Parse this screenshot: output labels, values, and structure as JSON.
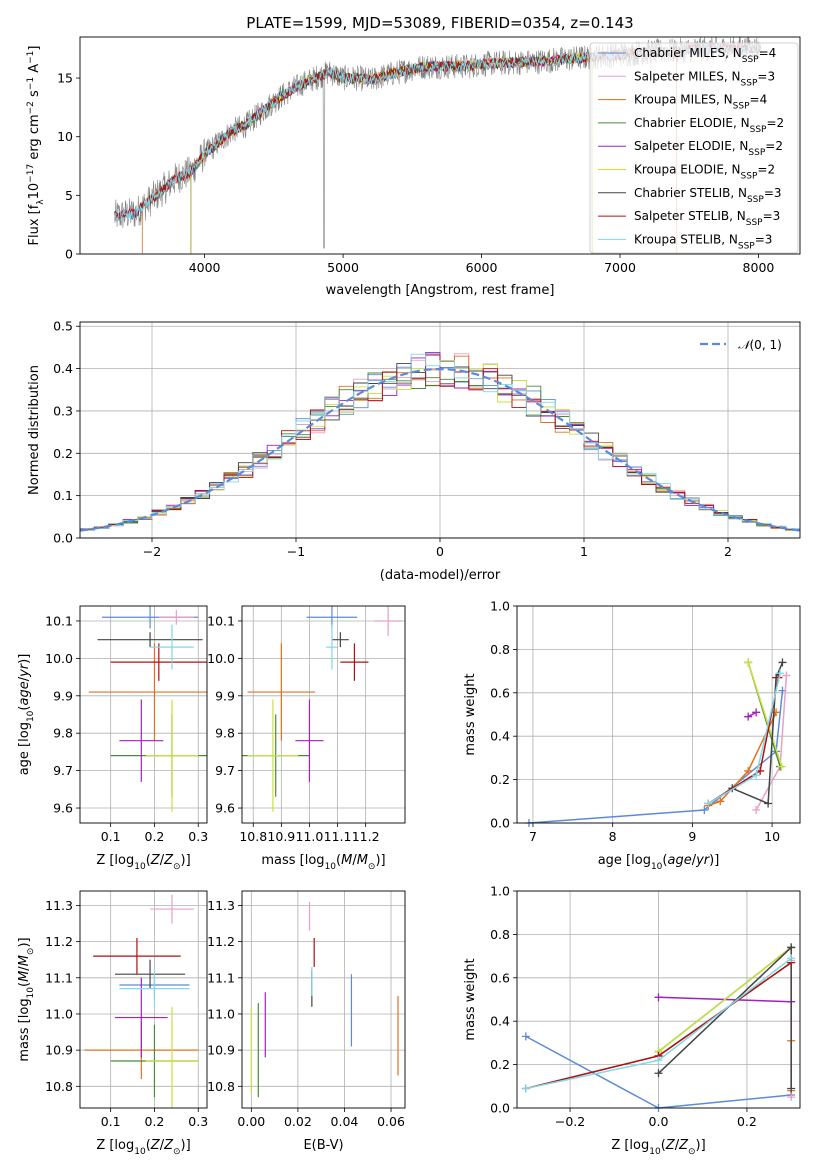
{
  "colors": {
    "Chabrier MILES": "#5b8bd8",
    "Salpeter MILES": "#e8a0c8",
    "Kroupa MILES": "#e07020",
    "Chabrier ELODIE": "#4a8a3a",
    "Salpeter ELODIE": "#a020c0",
    "Kroupa ELODIE": "#c8e040",
    "Chabrier STELIB": "#444444",
    "Salpeter STELIB": "#b01010",
    "Kroupa STELIB": "#80d8e8",
    "data": "#808080",
    "gauss": "#5b8bd8"
  },
  "chart_data": [
    {
      "name": "spectrum",
      "type": "line",
      "title": "PLATE=1599, MJD=53089, FIBERID=0354, z=0.143",
      "xlabel": "wavelength [Angstrom, rest frame]",
      "ylabel": "Flux [f_λ10^-17 erg cm^-2 s^-1 A^-1]",
      "xlim": [
        3100,
        8300
      ],
      "ylim": [
        0,
        18.5
      ],
      "xticks": [
        "4000",
        "5000",
        "6000",
        "7000",
        "8000"
      ],
      "yticks": [
        "0",
        "5",
        "10",
        "15"
      ],
      "legend_position": "top-right",
      "legend": [
        {
          "label": "Chabrier MILES, N",
          "sub": "SSP",
          "eq": "=4"
        },
        {
          "label": "Salpeter MILES, N",
          "sub": "SSP",
          "eq": "=3"
        },
        {
          "label": "Kroupa MILES, N",
          "sub": "SSP",
          "eq": "=4"
        },
        {
          "label": "Chabrier ELODIE, N",
          "sub": "SSP",
          "eq": "=2"
        },
        {
          "label": "Salpeter ELODIE, N",
          "sub": "SSP",
          "eq": "=2"
        },
        {
          "label": "Kroupa ELODIE, N",
          "sub": "SSP",
          "eq": "=2"
        },
        {
          "label": "Chabrier STELIB, N",
          "sub": "SSP",
          "eq": "=3"
        },
        {
          "label": "Salpeter STELIB, N",
          "sub": "SSP",
          "eq": "=3"
        },
        {
          "label": "Kroupa STELIB, N",
          "sub": "SSP",
          "eq": "=3"
        }
      ],
      "continuum": [
        [
          3350,
          3.2
        ],
        [
          3500,
          3.5
        ],
        [
          3600,
          4.5
        ],
        [
          3700,
          5.5
        ],
        [
          3800,
          6.5
        ],
        [
          3900,
          7.0
        ],
        [
          4000,
          8.5
        ],
        [
          4100,
          9.5
        ],
        [
          4200,
          10.5
        ],
        [
          4300,
          11.0
        ],
        [
          4400,
          12.0
        ],
        [
          4500,
          13.0
        ],
        [
          4600,
          13.8
        ],
        [
          4700,
          14.5
        ],
        [
          4800,
          15.0
        ],
        [
          4900,
          15.5
        ],
        [
          5000,
          15.0
        ],
        [
          5100,
          15.0
        ],
        [
          5200,
          14.8
        ],
        [
          5300,
          15.2
        ],
        [
          5400,
          15.5
        ],
        [
          5500,
          15.8
        ],
        [
          5600,
          16.0
        ],
        [
          5700,
          16.0
        ],
        [
          5800,
          16.0
        ],
        [
          5900,
          16.0
        ],
        [
          6000,
          16.2
        ],
        [
          6200,
          16.3
        ],
        [
          6400,
          16.4
        ],
        [
          6600,
          16.6
        ],
        [
          6800,
          16.8
        ],
        [
          7000,
          17.0
        ],
        [
          7200,
          17.2
        ],
        [
          7400,
          17.3
        ],
        [
          7600,
          17.5
        ],
        [
          7800,
          17.5
        ],
        [
          8000,
          17.6
        ]
      ]
    },
    {
      "name": "residual-histogram",
      "type": "line",
      "xlabel": "(data-model)/error",
      "ylabel": "Normed distribution",
      "xlim": [
        -2.5,
        2.5
      ],
      "ylim": [
        0,
        0.51
      ],
      "xticks": [
        "−2",
        "−1",
        "0",
        "1",
        "2"
      ],
      "yticks": [
        "0.0",
        "0.1",
        "0.2",
        "0.3",
        "0.4",
        "0.5"
      ],
      "legend_position": "top-right",
      "series": [
        {
          "name": "N(0,1)",
          "mean": 0,
          "sigma": 1
        }
      ]
    },
    {
      "name": "age-vs-Z",
      "type": "scatter",
      "xlabel": "Z [log10(Z/Z⊙)]",
      "ylabel": "age [log10(age/yr)]",
      "xlim": [
        0.03,
        0.32
      ],
      "ylim": [
        9.56,
        10.14
      ],
      "xticks": [
        "0.1",
        "0.2",
        "0.3"
      ],
      "yticks": [
        "9.6",
        "9.7",
        "9.8",
        "9.9",
        "10.0",
        "10.1"
      ],
      "points": [
        {
          "model": "Chabrier MILES",
          "x": 0.19,
          "y": 10.11,
          "xerr": 0.11,
          "yerr": 0.03
        },
        {
          "model": "Salpeter MILES",
          "x": 0.25,
          "y": 10.11,
          "xerr": 0.04,
          "yerr": 0.02
        },
        {
          "model": "Kroupa MILES",
          "x": 0.2,
          "y": 9.91,
          "xerr": 0.15,
          "yerr": 0.13
        },
        {
          "model": "Chabrier ELODIE",
          "x": 0.24,
          "y": 9.74,
          "xerr": 0.14,
          "yerr": 0.11
        },
        {
          "model": "Salpeter ELODIE",
          "x": 0.17,
          "y": 9.78,
          "xerr": 0.05,
          "yerr": 0.11
        },
        {
          "model": "Kroupa ELODIE",
          "x": 0.24,
          "y": 9.74,
          "xerr": 0.06,
          "yerr": 0.15
        },
        {
          "model": "Chabrier STELIB",
          "x": 0.19,
          "y": 10.05,
          "xerr": 0.12,
          "yerr": 0.02
        },
        {
          "model": "Salpeter STELIB",
          "x": 0.21,
          "y": 9.99,
          "xerr": 0.11,
          "yerr": 0.05
        },
        {
          "model": "Kroupa STELIB",
          "x": 0.24,
          "y": 10.03,
          "xerr": 0.05,
          "yerr": 0.06
        }
      ]
    },
    {
      "name": "age-vs-mass",
      "type": "scatter",
      "xlabel": "mass [log10(M/M⊙)]",
      "xlim": [
        10.76,
        11.34
      ],
      "ylim": [
        9.56,
        10.14
      ],
      "xticks": [
        "10.8",
        "10.9",
        "11.0",
        "11.1",
        "11.2"
      ],
      "yticks": [
        "9.6",
        "9.7",
        "9.8",
        "9.9",
        "10.0",
        "10.1"
      ],
      "points": [
        {
          "model": "Chabrier MILES",
          "x": 11.08,
          "y": 10.11,
          "xerr": 0.09,
          "yerr": 0.03
        },
        {
          "model": "Salpeter MILES",
          "x": 11.28,
          "y": 10.1,
          "xerr": 0.05,
          "yerr": 0.04
        },
        {
          "model": "Kroupa MILES",
          "x": 10.9,
          "y": 9.91,
          "xerr": 0.12,
          "yerr": 0.13
        },
        {
          "model": "Chabrier ELODIE",
          "x": 10.88,
          "y": 9.74,
          "xerr": 0.12,
          "yerr": 0.11
        },
        {
          "model": "Salpeter ELODIE",
          "x": 11.0,
          "y": 9.78,
          "xerr": 0.05,
          "yerr": 0.11
        },
        {
          "model": "Kroupa ELODIE",
          "x": 10.87,
          "y": 9.74,
          "xerr": 0.09,
          "yerr": 0.15
        },
        {
          "model": "Chabrier STELIB",
          "x": 11.11,
          "y": 10.05,
          "xerr": 0.03,
          "yerr": 0.02
        },
        {
          "model": "Salpeter STELIB",
          "x": 11.16,
          "y": 9.99,
          "xerr": 0.05,
          "yerr": 0.05
        },
        {
          "model": "Kroupa STELIB",
          "x": 11.08,
          "y": 10.03,
          "xerr": 0.02,
          "yerr": 0.06
        }
      ]
    },
    {
      "name": "mass-weight-vs-age",
      "type": "line",
      "xlabel": "age [log10(age/yr)]",
      "ylabel": "mass weight",
      "xlim": [
        6.8,
        10.35
      ],
      "ylim": [
        0,
        1
      ],
      "xticks": [
        "7",
        "8",
        "9",
        "10"
      ],
      "yticks": [
        "0.0",
        "0.2",
        "0.4",
        "0.6",
        "0.8",
        "1.0"
      ],
      "series": [
        {
          "model": "Chabrier MILES",
          "x": [
            6.95,
            9.15,
            10.05,
            10.13
          ],
          "y": [
            0.0,
            0.06,
            0.33,
            0.61
          ]
        },
        {
          "model": "Salpeter MILES",
          "x": [
            9.8,
            10.1,
            10.18
          ],
          "y": [
            0.06,
            0.26,
            0.68
          ]
        },
        {
          "model": "Kroupa MILES",
          "x": [
            9.2,
            9.35,
            9.7,
            10.05
          ],
          "y": [
            0.08,
            0.1,
            0.24,
            0.51
          ]
        },
        {
          "model": "Chabrier ELODIE",
          "x": [
            9.7,
            10.1
          ],
          "y": [
            0.74,
            0.26
          ]
        },
        {
          "model": "Salpeter ELODIE",
          "x": [
            9.7,
            9.8
          ],
          "y": [
            0.49,
            0.51
          ]
        },
        {
          "model": "Kroupa ELODIE",
          "x": [
            9.7,
            10.12
          ],
          "y": [
            0.74,
            0.26
          ]
        },
        {
          "model": "Chabrier STELIB",
          "x": [
            9.5,
            9.95,
            10.05,
            10.13
          ],
          "y": [
            0.16,
            0.09,
            0.67,
            0.74
          ]
        },
        {
          "model": "Salpeter STELIB",
          "x": [
            9.2,
            9.85,
            10.08
          ],
          "y": [
            0.09,
            0.24,
            0.67
          ]
        },
        {
          "model": "Kroupa STELIB",
          "x": [
            9.2,
            9.8,
            10.1
          ],
          "y": [
            0.09,
            0.22,
            0.69
          ]
        }
      ]
    },
    {
      "name": "mass-vs-Z",
      "type": "scatter",
      "xlabel": "Z [log10(Z/Z⊙)]",
      "ylabel": "mass [log10(M/M⊙)]",
      "xlim": [
        0.03,
        0.32
      ],
      "ylim": [
        10.74,
        11.34
      ],
      "xticks": [
        "0.1",
        "0.2",
        "0.3"
      ],
      "yticks": [
        "10.8",
        "10.9",
        "11.0",
        "11.1",
        "11.2",
        "11.3"
      ],
      "points": [
        {
          "model": "Chabrier MILES",
          "x": 0.2,
          "y": 11.08,
          "xerr": 0.08,
          "yerr": 0.03
        },
        {
          "model": "Salpeter MILES",
          "x": 0.24,
          "y": 11.29,
          "xerr": 0.05,
          "yerr": 0.04
        },
        {
          "model": "Kroupa MILES",
          "x": 0.17,
          "y": 10.9,
          "xerr": 0.13,
          "yerr": 0.08
        },
        {
          "model": "Chabrier ELODIE",
          "x": 0.2,
          "y": 10.87,
          "xerr": 0.1,
          "yerr": 0.1
        },
        {
          "model": "Salpeter ELODIE",
          "x": 0.17,
          "y": 10.99,
          "xerr": 0.06,
          "yerr": 0.11
        },
        {
          "model": "Kroupa ELODIE",
          "x": 0.24,
          "y": 10.87,
          "xerr": 0.06,
          "yerr": 0.15
        },
        {
          "model": "Chabrier STELIB",
          "x": 0.19,
          "y": 11.11,
          "xerr": 0.08,
          "yerr": 0.04
        },
        {
          "model": "Salpeter STELIB",
          "x": 0.16,
          "y": 11.16,
          "xerr": 0.1,
          "yerr": 0.05
        },
        {
          "model": "Kroupa STELIB",
          "x": 0.2,
          "y": 11.07,
          "xerr": 0.08,
          "yerr": 0.05
        }
      ]
    },
    {
      "name": "mass-vs-ebv",
      "type": "scatter",
      "xlabel": "E(B-V)",
      "xlim": [
        -0.004,
        0.066
      ],
      "ylim": [
        10.74,
        11.34
      ],
      "xticks": [
        "0.00",
        "0.02",
        "0.04",
        "0.06"
      ],
      "yticks": [
        "10.8",
        "10.9",
        "11.0",
        "11.1",
        "11.2",
        "11.3"
      ],
      "points": [
        {
          "model": "Chabrier MILES",
          "x": 0.043,
          "y": 11.01,
          "yerr": 0.1
        },
        {
          "model": "Salpeter MILES",
          "x": 0.025,
          "y": 11.27,
          "yerr": 0.04
        },
        {
          "model": "Kroupa MILES",
          "x": 0.063,
          "y": 10.94,
          "yerr": 0.11
        },
        {
          "model": "Chabrier ELODIE",
          "x": 0.003,
          "y": 10.9,
          "yerr": 0.13
        },
        {
          "model": "Salpeter ELODIE",
          "x": 0.006,
          "y": 10.97,
          "yerr": 0.09
        },
        {
          "model": "Kroupa ELODIE",
          "x": 0.0,
          "y": 10.9,
          "yerr": 0.12
        },
        {
          "model": "Chabrier STELIB",
          "x": 0.026,
          "y": 11.07,
          "yerr": 0.05
        },
        {
          "model": "Salpeter STELIB",
          "x": 0.027,
          "y": 11.17,
          "yerr": 0.04
        },
        {
          "model": "Kroupa STELIB",
          "x": 0.026,
          "y": 11.09,
          "yerr": 0.04
        }
      ]
    },
    {
      "name": "mass-weight-vs-Z",
      "type": "line",
      "xlabel": "Z [log10(Z/Z⊙)]",
      "ylabel": "mass weight",
      "xlim": [
        -0.32,
        0.32
      ],
      "ylim": [
        0,
        1
      ],
      "xticks": [
        "−0.2",
        "0.0",
        "0.2"
      ],
      "yticks": [
        "0.0",
        "0.2",
        "0.4",
        "0.6",
        "0.8",
        "1.0"
      ],
      "series": [
        {
          "model": "Chabrier MILES",
          "x": [
            -0.3,
            0.0,
            0.3
          ],
          "y": [
            0.33,
            0.0,
            0.06
          ]
        },
        {
          "model": "Salpeter MILES",
          "x": [
            0.3,
            0.3
          ],
          "y": [
            0.05,
            0.68
          ]
        },
        {
          "model": "Kroupa MILES",
          "x": [
            0.0,
            0.3,
            0.3,
            0.3
          ],
          "y": [
            0.24,
            0.67,
            0.31,
            0.08
          ]
        },
        {
          "model": "Chabrier ELODIE",
          "x": [
            0.0,
            0.3
          ],
          "y": [
            0.26,
            0.74
          ]
        },
        {
          "model": "Salpeter ELODIE",
          "x": [
            0.0,
            0.3
          ],
          "y": [
            0.51,
            0.49
          ]
        },
        {
          "model": "Kroupa ELODIE",
          "x": [
            0.0,
            0.3
          ],
          "y": [
            0.26,
            0.74
          ]
        },
        {
          "model": "Chabrier STELIB",
          "x": [
            0.0,
            0.3,
            0.3
          ],
          "y": [
            0.16,
            0.74,
            0.09
          ]
        },
        {
          "model": "Salpeter STELIB",
          "x": [
            -0.3,
            0.0,
            0.3
          ],
          "y": [
            0.09,
            0.24,
            0.67
          ]
        },
        {
          "model": "Kroupa STELIB",
          "x": [
            -0.3,
            0.0,
            0.3
          ],
          "y": [
            0.09,
            0.22,
            0.69
          ]
        }
      ]
    }
  ]
}
